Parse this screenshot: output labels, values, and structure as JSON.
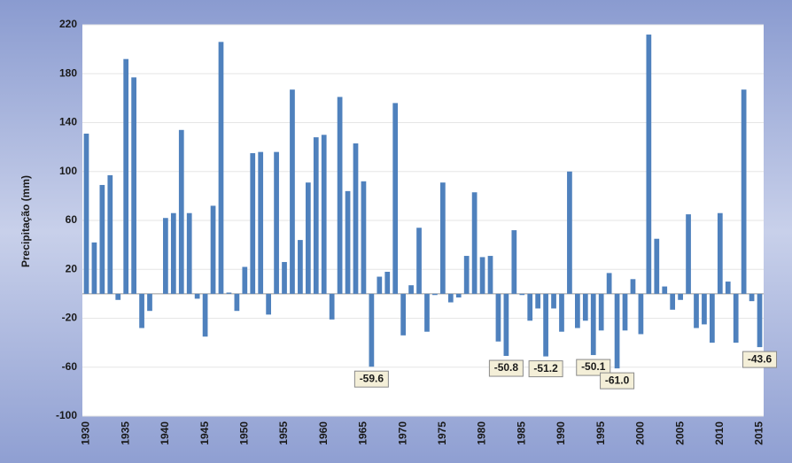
{
  "chart_data": {
    "type": "bar",
    "y_label": "Precipitação (mm)",
    "categories": [
      "1930",
      null,
      null,
      null,
      null,
      "1935",
      null,
      null,
      null,
      null,
      "1940",
      null,
      null,
      null,
      null,
      "1945",
      null,
      null,
      null,
      null,
      "1950",
      null,
      null,
      null,
      null,
      "1955",
      null,
      null,
      null,
      null,
      "1960",
      null,
      null,
      null,
      null,
      "1965",
      null,
      null,
      null,
      null,
      "1970",
      null,
      null,
      null,
      null,
      "1975",
      null,
      null,
      null,
      null,
      "1980",
      null,
      null,
      null,
      null,
      "1985",
      null,
      null,
      null,
      null,
      "1990",
      null,
      null,
      null,
      null,
      "1995",
      null,
      null,
      null,
      null,
      "2000",
      null,
      null,
      null,
      null,
      "2005",
      null,
      null,
      null,
      null,
      "2010",
      null,
      null,
      null,
      null,
      "2015"
    ],
    "values": [
      131,
      42,
      89,
      97,
      -5,
      192,
      177,
      -28,
      -14,
      0,
      62,
      66,
      134,
      66,
      -4,
      -35,
      72,
      206,
      1,
      -14,
      22,
      115,
      116,
      -17,
      116,
      26,
      167,
      44,
      91,
      128,
      130,
      -21,
      161,
      84,
      123,
      92,
      -59.6,
      14,
      18,
      156,
      -34,
      7,
      54,
      -31,
      -1,
      91,
      -7,
      -3,
      31,
      83,
      30,
      31,
      -39,
      -50.8,
      52,
      -1,
      -22,
      -12,
      -51.2,
      -12,
      -31,
      100,
      -28,
      -22,
      -50.1,
      -30,
      17,
      -61.0,
      -30,
      12,
      -33,
      212,
      45,
      6,
      -13,
      -5,
      65,
      -28,
      -25,
      -40,
      66,
      10,
      -40,
      167,
      -6,
      -43.6
    ],
    "value_labels": [
      null,
      null,
      null,
      null,
      null,
      null,
      null,
      null,
      null,
      null,
      null,
      null,
      null,
      null,
      null,
      null,
      null,
      null,
      null,
      null,
      null,
      null,
      null,
      null,
      null,
      null,
      null,
      null,
      null,
      null,
      null,
      null,
      null,
      null,
      null,
      null,
      "-59.6",
      null,
      null,
      null,
      null,
      null,
      null,
      null,
      null,
      null,
      null,
      null,
      null,
      null,
      null,
      null,
      null,
      "-50.8",
      null,
      null,
      null,
      null,
      "-51.2",
      null,
      null,
      null,
      null,
      null,
      "-50.1",
      null,
      null,
      "-61.0",
      null,
      null,
      null,
      null,
      null,
      null,
      null,
      null,
      null,
      null,
      null,
      null,
      null,
      null,
      null,
      null,
      null,
      "-43.6"
    ],
    "color": "#4f81bd",
    "ylim": [
      -100,
      220
    ],
    "yticks": [
      -100,
      -60,
      -20,
      20,
      60,
      100,
      140,
      180,
      220
    ],
    "grid": true
  }
}
